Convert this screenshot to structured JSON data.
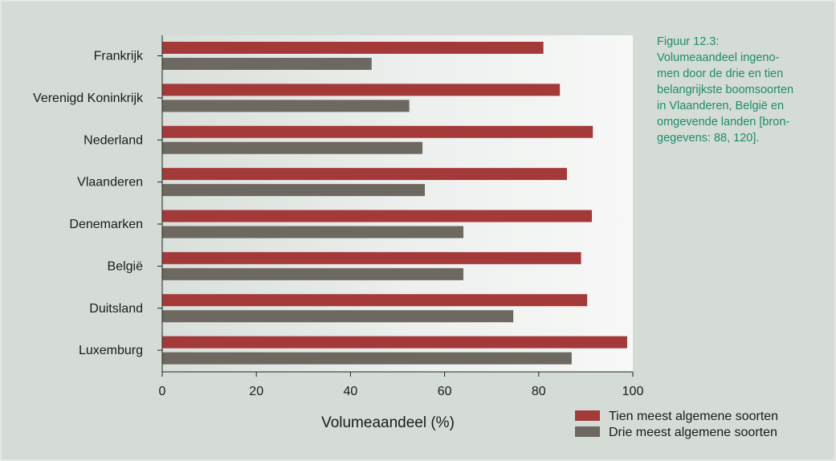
{
  "caption": "Figuur 12.3:\nVolumeaandeel ingeno-\nmen door de drie en tien\nbelangrijkste boomsoorten\nin Vlaanderen, België en\nomgevende landen [bron-\ngegevens: 88, 120].",
  "chart_data": {
    "type": "bar",
    "orientation": "horizontal",
    "categories": [
      "Frankrijk",
      "Verenigd Koninkrijk",
      "Nederland",
      "Vlaanderen",
      "Denemarken",
      "België",
      "Duitsland",
      "Luxemburg"
    ],
    "series": [
      {
        "name": "Tien meest algemene soorten",
        "color": "#a33a39",
        "values": [
          81,
          84.5,
          91.5,
          86,
          91.3,
          89,
          90.3,
          98.8
        ]
      },
      {
        "name": "Drie meest algemene soorten",
        "color": "#6d6860",
        "values": [
          44.5,
          52.5,
          55.3,
          55.8,
          64,
          64,
          74.6,
          87
        ]
      }
    ],
    "xlabel": "Volumeaandeel (%)",
    "xlim": [
      0,
      100
    ],
    "xticks": [
      "0",
      "20",
      "40",
      "60",
      "80",
      "100"
    ],
    "grid": false,
    "legend_position": "bottom-right"
  }
}
